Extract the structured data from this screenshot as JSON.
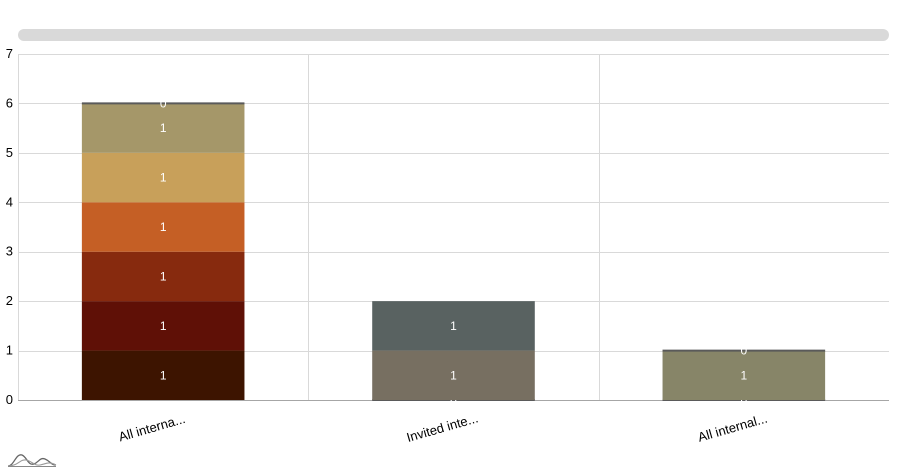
{
  "chart_data": {
    "type": "bar",
    "stacked": true,
    "title": "",
    "xlabel": "",
    "ylabel": "",
    "ylim": [
      0,
      7
    ],
    "yticks": [
      0,
      1,
      2,
      3,
      4,
      5,
      6,
      7
    ],
    "grid": true,
    "categories": [
      "All interna...",
      "Invited inte...",
      "All internal..."
    ],
    "stacks": [
      {
        "category": "All interna...",
        "segments": [
          {
            "value": 1,
            "label": "1",
            "color": "#3d1400"
          },
          {
            "value": 1,
            "label": "1",
            "color": "#5f1006"
          },
          {
            "value": 1,
            "label": "1",
            "color": "#872a0e"
          },
          {
            "value": 1,
            "label": "1",
            "color": "#c55f25"
          },
          {
            "value": 1,
            "label": "1",
            "color": "#c8a05a"
          },
          {
            "value": 1,
            "label": "1",
            "color": "#a59769"
          },
          {
            "value": 0,
            "label": "0",
            "color": "#5a5a5a"
          }
        ]
      },
      {
        "category": "Invited inte...",
        "segments": [
          {
            "value": 0,
            "label": "0",
            "color": "#5a5a5a"
          },
          {
            "value": 1,
            "label": "1",
            "color": "#776f61"
          },
          {
            "value": 1,
            "label": "1",
            "color": "#596261"
          }
        ]
      },
      {
        "category": "All internal...",
        "segments": [
          {
            "value": 0,
            "label": "0",
            "color": "#5a5a5a"
          },
          {
            "value": 1,
            "label": "1",
            "color": "#878568"
          },
          {
            "value": 0,
            "label": "0",
            "color": "#5a5a5a"
          }
        ]
      }
    ]
  },
  "scrollbar": {
    "color": "#d9d9d9"
  }
}
